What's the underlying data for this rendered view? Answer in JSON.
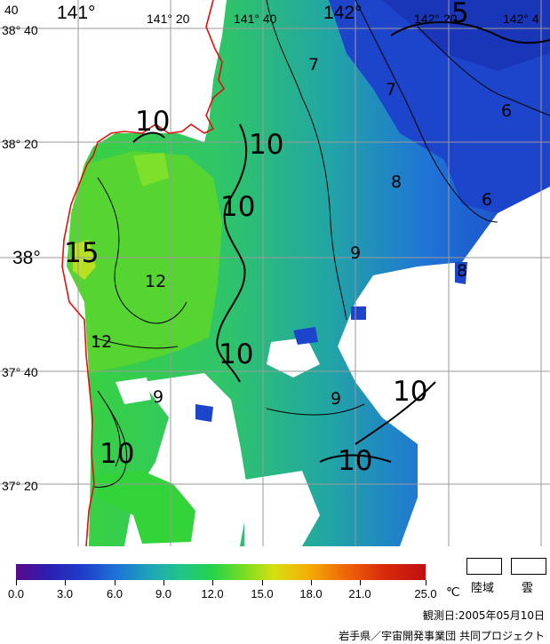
{
  "map": {
    "lon_labels": [
      "141°",
      "141° 20",
      "141° 40",
      "142°",
      "142° 20",
      "142° 4"
    ],
    "lat_labels": [
      "38° 40",
      "38° 20",
      "38°",
      "37° 40",
      "37° 20"
    ],
    "corner_label": "40",
    "contour_labels": {
      "big": [
        "10",
        "10",
        "10",
        "15",
        "10",
        "10",
        "10",
        "10",
        "5"
      ],
      "small": [
        "7",
        "7",
        "6",
        "8",
        "6",
        "9",
        "12",
        "12",
        "9",
        "9",
        "8"
      ]
    }
  },
  "legend": {
    "scale_min": 0.0,
    "scale_max": 25.0,
    "ticks": [
      "0.0",
      "3.0",
      "6.0",
      "9.0",
      "12.0",
      "15.0",
      "18.0",
      "21.0",
      "25.0"
    ],
    "unit": "℃",
    "key_land": "陸域",
    "key_cloud": "雲",
    "colors": {
      "cold": "#5a0a8c",
      "mid": "#24d34a",
      "warm": "#c10f10",
      "land_cloud": "#ffffff",
      "coastline": "#e01010"
    }
  },
  "footer": {
    "observed": "観測日:2005年05月10日",
    "credit": "岩手県／宇宙開発事業団 共同プロジェクト"
  }
}
